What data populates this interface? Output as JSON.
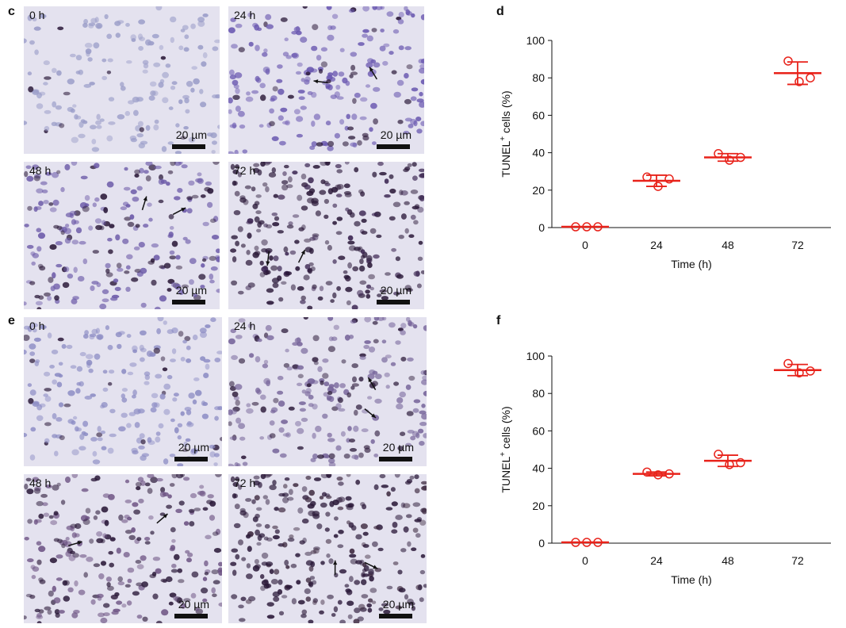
{
  "panel_c": {
    "letter": "c",
    "images": [
      {
        "time": "0 h",
        "scale": "20 µm",
        "stain": "#9a9cc8",
        "density": 0.55,
        "dark": 0.05,
        "arrows": 0
      },
      {
        "time": "24 h",
        "scale": "20 µm",
        "stain": "#6a58b0",
        "density": 0.7,
        "dark": 0.2,
        "arrows": 2
      },
      {
        "time": "48 h",
        "scale": "20 µm",
        "stain": "#6c5aa8",
        "density": 0.75,
        "dark": 0.3,
        "arrows": 2
      },
      {
        "time": "72 h",
        "scale": "20 µm",
        "stain": "#3a2450",
        "density": 0.85,
        "dark": 0.75,
        "arrows": 2
      }
    ]
  },
  "panel_e": {
    "letter": "e",
    "images": [
      {
        "time": "0 h",
        "scale": "20 µm",
        "stain": "#8c8cc4",
        "density": 0.7,
        "dark": 0.1,
        "arrows": 0
      },
      {
        "time": "24 h",
        "scale": "20 µm",
        "stain": "#76649a",
        "density": 0.75,
        "dark": 0.35,
        "arrows": 2
      },
      {
        "time": "48 h",
        "scale": "20 µm",
        "stain": "#6e5484",
        "density": 0.8,
        "dark": 0.5,
        "arrows": 2
      },
      {
        "time": "72 h",
        "scale": "20 µm",
        "stain": "#3e2a40",
        "density": 0.9,
        "dark": 0.8,
        "arrows": 2
      }
    ]
  },
  "chart_data": [
    {
      "panel": "d",
      "type": "scatter",
      "xlabel": "Time (h)",
      "ylabel_main": "TUNEL",
      "ylabel_sup": "+",
      "ylabel_rest": " cells (%)",
      "categories": [
        "0",
        "24",
        "48",
        "72"
      ],
      "ylim": [
        0,
        100
      ],
      "yticks": [
        0,
        20,
        40,
        60,
        80,
        100
      ],
      "color": "#e8221a",
      "points": [
        [
          0.4,
          0.4,
          0.4
        ],
        [
          27,
          22,
          26
        ],
        [
          39.5,
          36,
          37.5
        ],
        [
          89,
          78,
          80
        ]
      ],
      "mean": [
        0.4,
        25,
        37.5,
        82.5
      ],
      "error": [
        0,
        3,
        2,
        6
      ]
    },
    {
      "panel": "f",
      "type": "scatter",
      "xlabel": "Time (h)",
      "ylabel_main": "TUNEL",
      "ylabel_sup": "+",
      "ylabel_rest": " cells (%)",
      "categories": [
        "0",
        "24",
        "48",
        "72"
      ],
      "ylim": [
        0,
        100
      ],
      "yticks": [
        0,
        20,
        40,
        60,
        80,
        100
      ],
      "color": "#e8221a",
      "points": [
        [
          0.4,
          0.4,
          0.4
        ],
        [
          38,
          36.5,
          37
        ],
        [
          47.5,
          42,
          43
        ],
        [
          96,
          91,
          92
        ]
      ],
      "mean": [
        0.4,
        37,
        44,
        92.5
      ],
      "error": [
        0,
        1,
        3,
        3
      ]
    }
  ]
}
